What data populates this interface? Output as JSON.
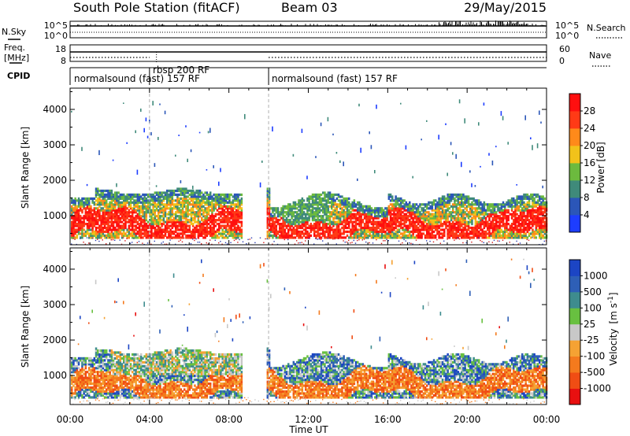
{
  "header": {
    "station": "South Pole Station (fitACF)",
    "beam": "Beam 03",
    "date": "29/May/2015"
  },
  "chart_data": [
    {
      "type": "line",
      "panel": "noise",
      "left_label": "N.Sky",
      "right_label": "N.Search",
      "left_ticks": [
        "10^5",
        "10^0"
      ],
      "right_ticks": [
        "10^5",
        "10^0"
      ]
    },
    {
      "type": "line",
      "panel": "frequency",
      "left_label_lines": [
        "Freq.",
        "[MHz]"
      ],
      "right_label": "Nave",
      "left_ticks": [
        "18",
        "8"
      ],
      "right_ticks": [
        "60",
        "0"
      ]
    },
    {
      "type": "table",
      "panel": "cpid",
      "label": "CPID",
      "segments": [
        {
          "start": 0,
          "end": 4,
          "name": "normalsound (fast) 157 RF"
        },
        {
          "start": 4,
          "end": 10,
          "name": "rbsp 200 RF"
        },
        {
          "start": 10,
          "end": 24,
          "name": "normalsound (fast) 157 RF"
        }
      ]
    },
    {
      "type": "heatmap",
      "panel": "power",
      "ylabel": "Slant Range [km]",
      "xlim": [
        0,
        24
      ],
      "ylim": [
        180,
        4600
      ],
      "yticks": [
        1000,
        2000,
        3000,
        4000
      ],
      "colorbar": {
        "label": "Power [dB]",
        "ticks": [
          "4",
          "8",
          "12",
          "16",
          "20",
          "24",
          "28"
        ],
        "colors": [
          "#1d3dff",
          "#2b56b8",
          "#3f8a7a",
          "#6cba3e",
          "#f2c21a",
          "#ff8a1a",
          "#ff3a16",
          "#ff0f0f"
        ]
      }
    },
    {
      "type": "heatmap",
      "panel": "velocity",
      "ylabel": "Slant Range [km]",
      "xlabel": "Time UT",
      "xlim": [
        0,
        24
      ],
      "ylim": [
        180,
        4600
      ],
      "yticks": [
        1000,
        2000,
        3000,
        4000
      ],
      "xtick_labels": [
        "00:00",
        "04:00",
        "08:00",
        "12:00",
        "16:00",
        "20:00",
        "00:00"
      ],
      "colorbar": {
        "label_main": "Velocity",
        "label_unit": "[m s",
        "label_sup": "-1",
        "label_close": "]",
        "ticks": [
          "1000",
          "500",
          "100",
          "25",
          "-25",
          "-100",
          "-500",
          "-1000"
        ],
        "colors": [
          "#1c45c4",
          "#2e5fb6",
          "#3e8c8e",
          "#68c040",
          "#c8c8c8",
          "#f5a233",
          "#f47a1d",
          "#f04d14",
          "#e81010"
        ]
      }
    }
  ]
}
